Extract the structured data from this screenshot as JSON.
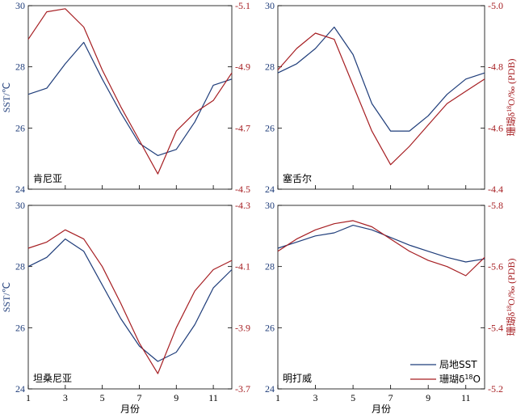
{
  "chart_data": [
    {
      "type": "line",
      "panel_label": "肯尼亚",
      "x": [
        1,
        2,
        3,
        4,
        5,
        6,
        7,
        8,
        9,
        10,
        11,
        12
      ],
      "ylabel": "SST/℃",
      "ylabel_right": "",
      "xlabel": "",
      "ylim": [
        24,
        30
      ],
      "ylim_right": [
        -4.5,
        -5.1
      ],
      "y_ticks": [
        "24",
        "26",
        "28",
        "30"
      ],
      "y_ticks_right": [
        "-4.5",
        "-4.7",
        "-4.9",
        "-5.1"
      ],
      "x_ticks": [],
      "series": [
        {
          "name": "局地SST",
          "axis": "left",
          "color": "#1f3d7a",
          "values": [
            27.1,
            27.3,
            28.1,
            28.8,
            27.6,
            26.5,
            25.5,
            25.1,
            25.3,
            26.2,
            27.4,
            27.6
          ]
        },
        {
          "name": "珊瑚δ18O",
          "axis": "right",
          "color": "#a61e22",
          "values": [
            -4.99,
            -5.08,
            -5.09,
            -5.03,
            -4.89,
            -4.77,
            -4.66,
            -4.55,
            -4.69,
            -4.75,
            -4.79,
            -4.88
          ]
        }
      ]
    },
    {
      "type": "line",
      "panel_label": "塞舌尔",
      "x": [
        1,
        2,
        3,
        4,
        5,
        6,
        7,
        8,
        9,
        10,
        11,
        12
      ],
      "ylabel": "",
      "ylabel_right": "珊瑚δ18O/‰ (PDB)",
      "xlabel": "",
      "ylim": [
        24,
        30
      ],
      "ylim_right": [
        -4.4,
        -5.0
      ],
      "y_ticks": [
        "24",
        "26",
        "28",
        "30"
      ],
      "y_ticks_right": [
        "-4.4",
        "-4.6",
        "-4.8",
        "-5.0"
      ],
      "x_ticks": [],
      "series": [
        {
          "name": "局地SST",
          "axis": "left",
          "color": "#1f3d7a",
          "values": [
            27.8,
            28.1,
            28.6,
            29.3,
            28.4,
            26.8,
            25.9,
            25.9,
            26.4,
            27.1,
            27.6,
            27.8
          ]
        },
        {
          "name": "珊瑚δ18O",
          "axis": "right",
          "color": "#a61e22",
          "values": [
            -4.79,
            -4.86,
            -4.91,
            -4.89,
            -4.74,
            -4.59,
            -4.48,
            -4.54,
            -4.61,
            -4.68,
            -4.72,
            -4.76
          ]
        }
      ]
    },
    {
      "type": "line",
      "panel_label": "坦桑尼亚",
      "x": [
        1,
        2,
        3,
        4,
        5,
        6,
        7,
        8,
        9,
        10,
        11,
        12
      ],
      "ylabel": "SST/℃",
      "ylabel_right": "",
      "xlabel": "月份",
      "ylim": [
        24,
        30
      ],
      "ylim_right": [
        -3.7,
        -4.3
      ],
      "y_ticks": [
        "24",
        "26",
        "28",
        "30"
      ],
      "y_ticks_right": [
        "-3.7",
        "-3.9",
        "-4.1",
        "-4.3"
      ],
      "x_ticks": [
        "1",
        "3",
        "5",
        "7",
        "9",
        "11"
      ],
      "series": [
        {
          "name": "局地SST",
          "axis": "left",
          "color": "#1f3d7a",
          "values": [
            28.0,
            28.3,
            28.9,
            28.5,
            27.4,
            26.3,
            25.4,
            24.9,
            25.2,
            26.1,
            27.3,
            27.9
          ]
        },
        {
          "name": "珊瑚δ18O",
          "axis": "right",
          "color": "#a61e22",
          "values": [
            -4.16,
            -4.18,
            -4.22,
            -4.19,
            -4.1,
            -3.98,
            -3.85,
            -3.75,
            -3.9,
            -4.02,
            -4.09,
            -4.12
          ]
        }
      ]
    },
    {
      "type": "line",
      "panel_label": "明打威",
      "x": [
        1,
        2,
        3,
        4,
        5,
        6,
        7,
        8,
        9,
        10,
        11,
        12
      ],
      "ylabel": "",
      "ylabel_right": "珊瑚δ18O/‰ (PDB)",
      "xlabel": "月份",
      "ylim": [
        24,
        30
      ],
      "ylim_right": [
        -5.2,
        -5.8
      ],
      "y_ticks": [
        "24",
        "26",
        "28",
        "30"
      ],
      "y_ticks_right": [
        "-5.2",
        "-5.4",
        "-5.6",
        "-5.8"
      ],
      "x_ticks": [
        "1",
        "3",
        "5",
        "7",
        "9",
        "11"
      ],
      "series": [
        {
          "name": "局地SST",
          "axis": "left",
          "color": "#1f3d7a",
          "values": [
            28.6,
            28.8,
            29.0,
            29.1,
            29.35,
            29.2,
            28.95,
            28.7,
            28.5,
            28.3,
            28.15,
            28.25
          ]
        },
        {
          "name": "珊瑚δ18O",
          "axis": "right",
          "color": "#a61e22",
          "values": [
            -5.65,
            -5.69,
            -5.72,
            -5.74,
            -5.75,
            -5.73,
            -5.69,
            -5.65,
            -5.62,
            -5.6,
            -5.57,
            -5.63
          ]
        }
      ]
    }
  ],
  "legend": {
    "items": [
      {
        "label": "局地SST",
        "color": "#1f3d7a"
      },
      {
        "label": "珊瑚δ18O",
        "color": "#a61e22"
      }
    ]
  }
}
